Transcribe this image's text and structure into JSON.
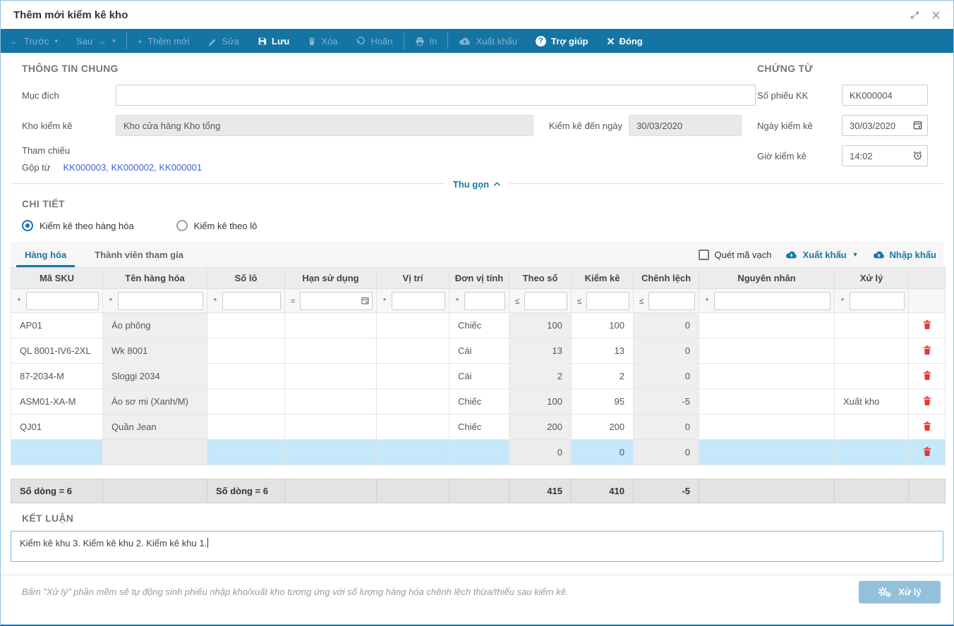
{
  "window": {
    "title": "Thêm mới kiểm kê kho"
  },
  "toolbar": {
    "prev": "Trước",
    "next": "Sau",
    "add": "Thêm mới",
    "edit": "Sửa",
    "save": "Lưu",
    "delete": "Xóa",
    "undo": "Hoãn",
    "print": "In",
    "export": "Xuất khẩu",
    "help": "Trợ giúp",
    "close": "Đóng"
  },
  "general": {
    "heading": "THÔNG TIN CHUNG",
    "purpose_label": "Mục đích",
    "purpose_value": "",
    "warehouse_label": "Kho kiểm kê",
    "warehouse_value": "Kho cửa hàng Kho tổng",
    "check_to_date_label": "Kiểm kê đến ngày",
    "check_to_date_value": "30/03/2020",
    "reference_label": "Tham chiếu",
    "merged_from_label": "Gộp từ",
    "merged_from_links": [
      "KK000003",
      "KK000002",
      "KK000001"
    ],
    "merged_from_display": "KK000003, KK000002, KK000001"
  },
  "document": {
    "heading": "CHỨNG TỪ",
    "sheet_no_label": "Số phiếu KK",
    "sheet_no_value": "KK000004",
    "date_label": "Ngày kiểm kê",
    "date_value": "30/03/2020",
    "time_label": "Giờ kiểm kê",
    "time_value": "14:02"
  },
  "collapse_label": "Thu gọn",
  "detail": {
    "heading": "CHI TIẾT",
    "radio_by_item": "Kiểm kê theo hàng hóa",
    "radio_by_lot": "Kiểm kê theo lô",
    "selected_radio": "by_item",
    "tabs": [
      "Hàng hóa",
      "Thành viên tham gia"
    ],
    "active_tab": "Hàng hóa",
    "barcode_label": "Quét mã vạch",
    "barcode_checked": false,
    "export_label": "Xuất khẩu",
    "import_label": "Nhập khẩu"
  },
  "table": {
    "columns": [
      "Mã SKU",
      "Tên hàng hóa",
      "Số lô",
      "Hạn sử dụng",
      "Vị trí",
      "Đơn vị tính",
      "Theo số",
      "Kiểm kê",
      "Chênh lệch",
      "Nguyên nhân",
      "Xử lý"
    ],
    "filters": [
      "*",
      "*",
      "*",
      "=",
      "*",
      "*",
      "≤",
      "≤",
      "≤",
      "*",
      "*"
    ],
    "rows": [
      {
        "sku": "AP01",
        "name": "Áo phông",
        "lot": "",
        "expiry": "",
        "location": "",
        "unit": "Chiếc",
        "stock": "100",
        "counted": "100",
        "diff": "0",
        "reason": "",
        "action": "",
        "selected": false
      },
      {
        "sku": "QL 8001-IV6-2XL",
        "name": "Wk 8001",
        "lot": "",
        "expiry": "",
        "location": "",
        "unit": "Cái",
        "stock": "13",
        "counted": "13",
        "diff": "0",
        "reason": "",
        "action": "",
        "selected": false
      },
      {
        "sku": "87-2034-M",
        "name": "Sloggi 2034",
        "lot": "",
        "expiry": "",
        "location": "",
        "unit": "Cái",
        "stock": "2",
        "counted": "2",
        "diff": "0",
        "reason": "",
        "action": "",
        "selected": false
      },
      {
        "sku": "ASM01-XA-M",
        "name": "Áo sơ mi (Xanh/M)",
        "lot": "",
        "expiry": "",
        "location": "",
        "unit": "Chiếc",
        "stock": "100",
        "counted": "95",
        "diff": "-5",
        "reason": "",
        "action": "Xuất kho",
        "selected": false
      },
      {
        "sku": "QJ01",
        "name": "Quần Jean",
        "lot": "",
        "expiry": "",
        "location": "",
        "unit": "Chiếc",
        "stock": "200",
        "counted": "200",
        "diff": "0",
        "reason": "",
        "action": "",
        "selected": false
      },
      {
        "sku": "",
        "name": "",
        "lot": "",
        "expiry": "",
        "location": "",
        "unit": "",
        "stock": "0",
        "counted": "0",
        "diff": "0",
        "reason": "",
        "action": "",
        "selected": true
      }
    ],
    "footer": {
      "rows_count_sku": "Số dòng = 6",
      "rows_count_lot": "Số dòng = 6",
      "stock_total": "415",
      "counted_total": "410",
      "diff_total": "-5"
    }
  },
  "conclusion": {
    "heading": "KẾT LUẬN",
    "value": "Kiểm kê khu 3. Kiểm kê khu 2. Kiểm kê khu 1."
  },
  "bottom": {
    "hint": "Bấm \"Xử lý\" phần mềm sẽ tự động sinh phiếu nhập kho/xuất kho tương ứng với số lượng hàng hóa chênh lệch thừa/thiếu sau kiểm kê.",
    "process_label": "Xử lý"
  },
  "colors": {
    "toolbar": "#1474a4",
    "accent_blue": "#1777a7",
    "link_blue": "#4262d6",
    "selected_row": "#c5e8fa",
    "danger_red": "#e53935",
    "readonly_cell": "#efefef",
    "process_button": "#93c1db"
  },
  "icons": {
    "expand-icon": "diagonal resize arrows",
    "close-icon": "×",
    "arrow-left-icon": "←",
    "arrow-right-icon": "→",
    "caret-down-icon": "▾",
    "plus-icon": "+",
    "pencil-icon": "✎",
    "save-icon": "floppy disk",
    "trash-icon": "trash can",
    "undo-icon": "↶",
    "printer-icon": "printer",
    "cloud-download-icon": "cloud with down arrow",
    "cloud-upload-icon": "cloud with up arrow",
    "help-icon": "?",
    "calendar-icon": "calendar",
    "clock-icon": "alarm clock",
    "chevron-up-icon": "^",
    "gears-icon": "⚙"
  }
}
